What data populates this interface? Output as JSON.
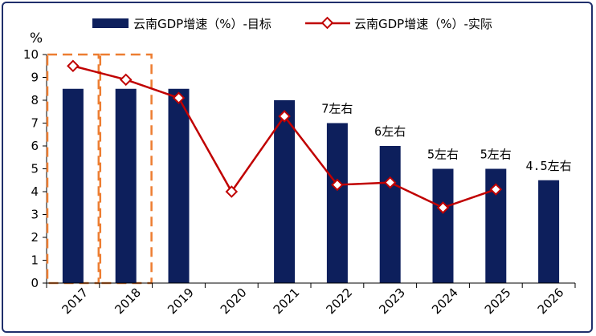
{
  "chart_data": {
    "type": "bar",
    "title": "",
    "unit_label": "%",
    "categories": [
      "2017",
      "2018",
      "2019",
      "2020",
      "2021",
      "2022",
      "2023",
      "2024",
      "2025",
      "2026"
    ],
    "ylim": [
      0,
      10
    ],
    "yticks": [
      0,
      1,
      2,
      3,
      4,
      5,
      6,
      7,
      8,
      9,
      10
    ],
    "series": [
      {
        "name": "云南GDP增速（%）-目标",
        "kind": "bar",
        "color": "#0d1f5c",
        "values": [
          8.5,
          8.5,
          8.5,
          null,
          8.0,
          7.0,
          6.0,
          5.0,
          5.0,
          4.5
        ]
      },
      {
        "name": "云南GDP增速（%）-实际",
        "kind": "line",
        "color": "#c00000",
        "values": [
          9.5,
          8.9,
          8.1,
          4.0,
          7.3,
          4.3,
          4.4,
          3.3,
          4.1,
          null
        ]
      }
    ],
    "annotations": [
      {
        "category": "2022",
        "text": "7左右"
      },
      {
        "category": "2023",
        "text": "6左右"
      },
      {
        "category": "2024",
        "text": "5左右"
      },
      {
        "category": "2025",
        "text": "5左右"
      },
      {
        "category": "2026",
        "text": "4.5左右"
      }
    ],
    "highlight": {
      "categories": [
        "2017",
        "2018"
      ],
      "color": "#ed7d31",
      "style": "dashed"
    }
  }
}
